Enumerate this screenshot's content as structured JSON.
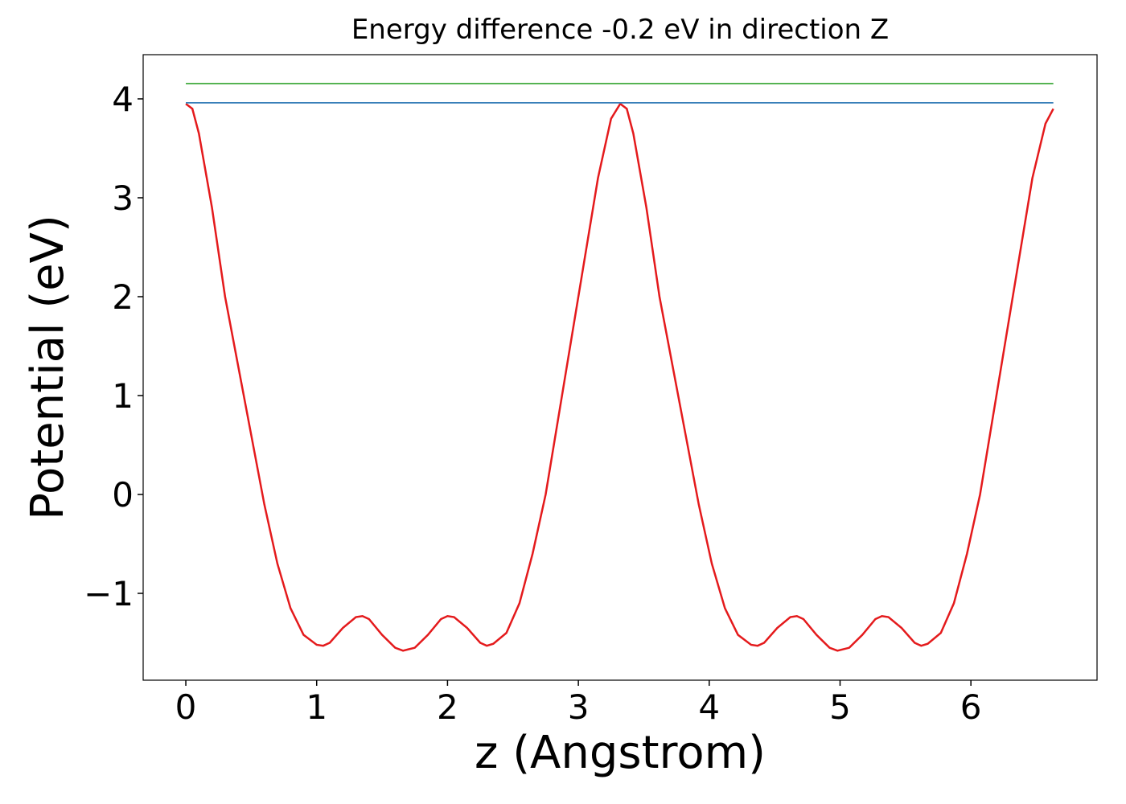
{
  "chart_data": {
    "type": "line",
    "title": "Energy difference -0.2 eV in direction Z",
    "x_label": "z (Angstrom)",
    "y_label": "Potential (eV)",
    "xlim": [
      -0.326,
      6.964
    ],
    "ylim": [
      -1.878,
      4.447
    ],
    "xticks": [
      0,
      1,
      2,
      3,
      4,
      5,
      6
    ],
    "yticks": [
      {
        "value": -1,
        "label": "−1"
      },
      0,
      1,
      2,
      3,
      4
    ],
    "grid": false,
    "series": [
      {
        "color": "#e41a1c",
        "x": [
          0,
          0.05,
          0.1,
          0.2,
          0.3,
          0.4,
          0.5,
          0.6,
          0.7,
          0.8,
          0.9,
          1.0,
          1.05,
          1.1,
          1.2,
          1.3,
          1.35,
          1.4,
          1.5,
          1.6,
          1.66,
          1.75,
          1.85,
          1.95,
          2.0,
          2.05,
          2.15,
          2.25,
          2.3,
          2.35,
          2.45,
          2.55,
          2.65,
          2.75,
          2.85,
          2.95,
          3.05,
          3.15,
          3.25,
          3.32,
          3.37,
          3.42,
          3.52,
          3.62,
          3.72,
          3.82,
          3.92,
          4.02,
          4.12,
          4.22,
          4.32,
          4.37,
          4.42,
          4.52,
          4.62,
          4.67,
          4.72,
          4.82,
          4.92,
          4.98,
          5.07,
          5.17,
          5.27,
          5.32,
          5.37,
          5.47,
          5.57,
          5.62,
          5.67,
          5.77,
          5.87,
          5.97,
          6.07,
          6.17,
          6.27,
          6.37,
          6.47,
          6.57,
          6.63
        ],
        "values": [
          3.95,
          3.9,
          3.65,
          2.9,
          2.0,
          1.3,
          0.6,
          -0.1,
          -0.7,
          -1.15,
          -1.42,
          -1.52,
          -1.53,
          -1.5,
          -1.35,
          -1.24,
          -1.23,
          -1.26,
          -1.42,
          -1.55,
          -1.58,
          -1.55,
          -1.42,
          -1.26,
          -1.23,
          -1.24,
          -1.35,
          -1.5,
          -1.53,
          -1.51,
          -1.4,
          -1.1,
          -0.6,
          0.0,
          0.8,
          1.6,
          2.4,
          3.2,
          3.8,
          3.95,
          3.9,
          3.65,
          2.9,
          2.0,
          1.3,
          0.6,
          -0.1,
          -0.7,
          -1.15,
          -1.42,
          -1.52,
          -1.53,
          -1.5,
          -1.35,
          -1.24,
          -1.23,
          -1.26,
          -1.42,
          -1.55,
          -1.58,
          -1.55,
          -1.42,
          -1.26,
          -1.23,
          -1.24,
          -1.35,
          -1.5,
          -1.53,
          -1.51,
          -1.4,
          -1.1,
          -0.6,
          0.0,
          0.8,
          1.6,
          2.4,
          3.2,
          3.75,
          3.9
        ]
      },
      {
        "color": "#377eb8",
        "x": [
          0,
          6.63
        ],
        "values": [
          3.96,
          3.96
        ]
      },
      {
        "color": "#4daf4a",
        "x": [
          0,
          6.63
        ],
        "values": [
          4.155,
          4.155
        ]
      }
    ]
  }
}
